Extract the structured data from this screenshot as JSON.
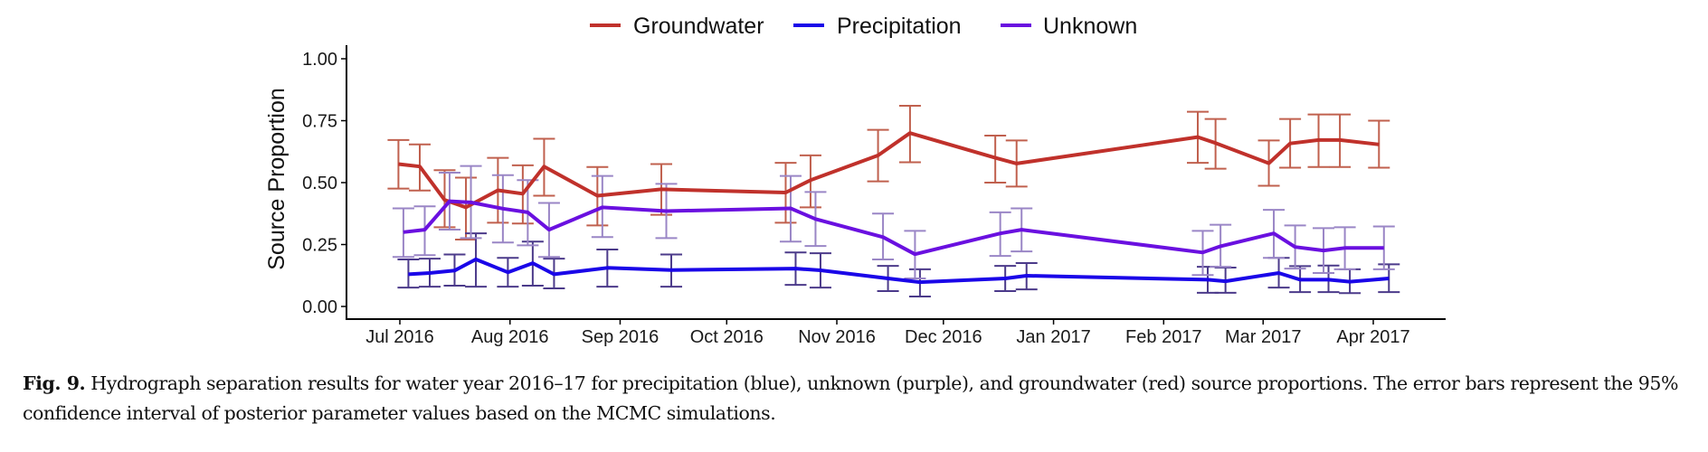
{
  "chart_data": {
    "type": "line",
    "title": "",
    "xlabel": "",
    "ylabel": "Source Proportion",
    "ylim": [
      0,
      1
    ],
    "yticks": [
      "0.00",
      "0.25",
      "0.50",
      "0.75",
      "1.00"
    ],
    "ytick_values": [
      0,
      0.25,
      0.5,
      0.75,
      1.0
    ],
    "xlim": [
      "2016-06-19",
      "2017-04-25"
    ],
    "xticks": [
      {
        "date": "2016-07-01",
        "label": "Jul 2016"
      },
      {
        "date": "2016-08-01",
        "label": "Aug 2016"
      },
      {
        "date": "2016-09-01",
        "label": "Sep 2016"
      },
      {
        "date": "2016-10-01",
        "label": "Oct 2016"
      },
      {
        "date": "2016-11-01",
        "label": "Nov 2016"
      },
      {
        "date": "2016-12-01",
        "label": "Dec 2016"
      },
      {
        "date": "2017-01-01",
        "label": "Jan 2017"
      },
      {
        "date": "2017-02-01",
        "label": "Feb 2017"
      },
      {
        "date": "2017-03-01",
        "label": "Mar 2017"
      },
      {
        "date": "2017-04-01",
        "label": "Apr 2017"
      }
    ],
    "grid": false,
    "legend_position": "top-center",
    "error_bars": "95% confidence interval",
    "x": [
      "2016-07-02",
      "2016-07-08",
      "2016-07-15",
      "2016-07-21",
      "2016-07-30",
      "2016-08-06",
      "2016-08-12",
      "2016-08-27",
      "2016-09-14",
      "2016-10-19",
      "2016-10-26",
      "2016-11-14",
      "2016-11-23",
      "2016-12-17",
      "2016-12-23",
      "2017-02-12",
      "2017-02-17",
      "2017-03-04",
      "2017-03-10",
      "2017-03-18",
      "2017-03-24",
      "2017-04-04"
    ],
    "series": [
      {
        "name": "Groundwater",
        "color": "#c0312b",
        "errorbar_color": "#c0604e",
        "dodge": -1,
        "values": [
          0.575,
          0.565,
          0.43,
          0.4,
          0.469,
          0.455,
          0.565,
          0.447,
          0.473,
          0.46,
          0.51,
          0.61,
          0.7,
          0.6,
          0.577,
          0.684,
          0.66,
          0.578,
          0.658,
          0.672,
          0.672,
          0.654
        ],
        "lower": [
          0.476,
          0.468,
          0.32,
          0.27,
          0.338,
          0.335,
          0.447,
          0.327,
          0.37,
          0.338,
          0.4,
          0.505,
          0.582,
          0.5,
          0.484,
          0.58,
          0.556,
          0.487,
          0.56,
          0.563,
          0.563,
          0.56
        ],
        "upper": [
          0.672,
          0.654,
          0.55,
          0.52,
          0.6,
          0.57,
          0.677,
          0.563,
          0.575,
          0.58,
          0.61,
          0.713,
          0.81,
          0.69,
          0.67,
          0.786,
          0.757,
          0.67,
          0.757,
          0.775,
          0.775,
          0.75
        ]
      },
      {
        "name": "Precipitation",
        "color": "#1a06e8",
        "errorbar_color": "#4b3a8a",
        "dodge": 1,
        "values": [
          0.13,
          0.135,
          0.145,
          0.19,
          0.138,
          0.175,
          0.13,
          0.156,
          0.147,
          0.153,
          0.146,
          0.113,
          0.098,
          0.113,
          0.124,
          0.108,
          0.102,
          0.135,
          0.108,
          0.108,
          0.1,
          0.113
        ],
        "lower": [
          0.076,
          0.08,
          0.084,
          0.08,
          0.08,
          0.084,
          0.073,
          0.08,
          0.08,
          0.087,
          0.076,
          0.062,
          0.04,
          0.062,
          0.069,
          0.055,
          0.055,
          0.076,
          0.058,
          0.058,
          0.054,
          0.058
        ],
        "upper": [
          0.19,
          0.193,
          0.21,
          0.295,
          0.196,
          0.262,
          0.193,
          0.23,
          0.21,
          0.218,
          0.215,
          0.164,
          0.15,
          0.164,
          0.175,
          0.16,
          0.157,
          0.196,
          0.163,
          0.165,
          0.15,
          0.17
        ]
      },
      {
        "name": "Unknown",
        "color": "#6a10e0",
        "errorbar_color": "#9a86c6",
        "dodge": 0,
        "values": [
          0.3,
          0.31,
          0.425,
          0.42,
          0.395,
          0.38,
          0.31,
          0.4,
          0.385,
          0.396,
          0.353,
          0.28,
          0.211,
          0.295,
          0.31,
          0.218,
          0.243,
          0.295,
          0.24,
          0.226,
          0.236,
          0.236
        ],
        "lower": [
          0.2,
          0.207,
          0.31,
          0.276,
          0.258,
          0.247,
          0.2,
          0.28,
          0.276,
          0.262,
          0.244,
          0.19,
          0.113,
          0.204,
          0.222,
          0.127,
          0.16,
          0.196,
          0.153,
          0.135,
          0.15,
          0.15
        ],
        "upper": [
          0.396,
          0.404,
          0.54,
          0.567,
          0.53,
          0.51,
          0.418,
          0.527,
          0.495,
          0.527,
          0.462,
          0.375,
          0.305,
          0.38,
          0.396,
          0.305,
          0.33,
          0.39,
          0.327,
          0.316,
          0.32,
          0.323
        ]
      }
    ]
  },
  "caption": {
    "label": "Fig. 9.",
    "text": " Hydrograph separation results for water year 2016–17 for precipitation (blue), unknown (purple), and groundwater (red) source proportions. The error bars represent the 95% confidence interval of posterior parameter values based on the MCMC simulations."
  }
}
